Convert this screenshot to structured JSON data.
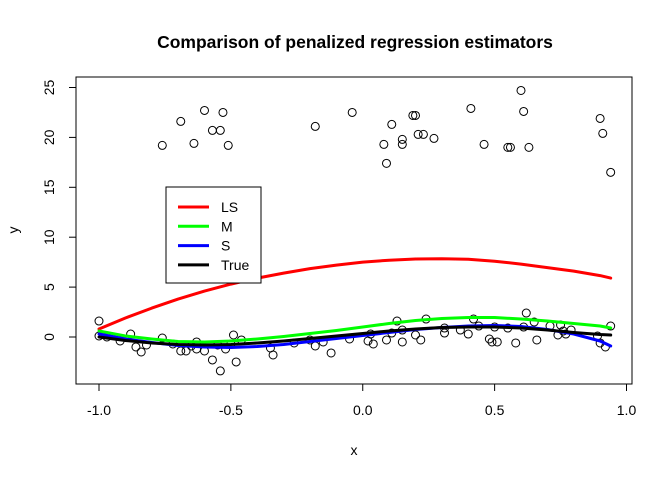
{
  "chart_data": {
    "type": "scatter",
    "title": "Comparison of penalized regression estimators",
    "xlabel": "x",
    "ylabel": "y",
    "xlim": [
      -1.0,
      0.95
    ],
    "ylim": [
      -4.6,
      26
    ],
    "x_ticks": [
      -1.0,
      -0.5,
      0.0,
      0.5,
      1.0
    ],
    "x_tick_labels": [
      "-1.0",
      "-0.5",
      "0.0",
      "0.5",
      "1.0"
    ],
    "y_ticks": [
      0,
      5,
      10,
      15,
      20,
      25
    ],
    "y_tick_labels": [
      "0",
      "5",
      "10",
      "15",
      "20",
      "25"
    ],
    "grid": false,
    "legend_position": "left",
    "points": [
      {
        "x": -0.76,
        "y": 19.2
      },
      {
        "x": -0.69,
        "y": 21.6
      },
      {
        "x": -0.64,
        "y": 19.4
      },
      {
        "x": -0.6,
        "y": 22.7
      },
      {
        "x": -0.57,
        "y": 20.7
      },
      {
        "x": -0.54,
        "y": 20.7
      },
      {
        "x": -0.53,
        "y": 22.5
      },
      {
        "x": -0.51,
        "y": 19.2
      },
      {
        "x": -0.18,
        "y": 21.1
      },
      {
        "x": -0.04,
        "y": 22.5
      },
      {
        "x": 0.08,
        "y": 19.3
      },
      {
        "x": 0.09,
        "y": 17.4
      },
      {
        "x": 0.11,
        "y": 21.3
      },
      {
        "x": 0.15,
        "y": 19.8
      },
      {
        "x": 0.15,
        "y": 19.3
      },
      {
        "x": 0.19,
        "y": 22.2
      },
      {
        "x": 0.2,
        "y": 22.2
      },
      {
        "x": 0.21,
        "y": 20.3
      },
      {
        "x": 0.23,
        "y": 20.3
      },
      {
        "x": 0.27,
        "y": 19.9
      },
      {
        "x": 0.41,
        "y": 22.9
      },
      {
        "x": 0.46,
        "y": 19.3
      },
      {
        "x": 0.55,
        "y": 19.0
      },
      {
        "x": 0.56,
        "y": 19.0
      },
      {
        "x": 0.6,
        "y": 24.7
      },
      {
        "x": 0.61,
        "y": 22.6
      },
      {
        "x": 0.63,
        "y": 19.0
      },
      {
        "x": 0.9,
        "y": 21.9
      },
      {
        "x": 0.91,
        "y": 20.4
      },
      {
        "x": 0.94,
        "y": 16.5
      },
      {
        "x": -1.0,
        "y": 1.6
      },
      {
        "x": -1.0,
        "y": 0.1
      },
      {
        "x": -0.97,
        "y": 0.0
      },
      {
        "x": -0.92,
        "y": -0.4
      },
      {
        "x": -0.88,
        "y": 0.3
      },
      {
        "x": -0.86,
        "y": -1.0
      },
      {
        "x": -0.84,
        "y": -1.5
      },
      {
        "x": -0.82,
        "y": -0.8
      },
      {
        "x": -0.76,
        "y": -0.1
      },
      {
        "x": -0.72,
        "y": -0.7
      },
      {
        "x": -0.69,
        "y": -1.4
      },
      {
        "x": -0.67,
        "y": -1.4
      },
      {
        "x": -0.65,
        "y": -0.9
      },
      {
        "x": -0.63,
        "y": -1.2
      },
      {
        "x": -0.63,
        "y": -0.5
      },
      {
        "x": -0.6,
        "y": -1.4
      },
      {
        "x": -0.57,
        "y": -2.3
      },
      {
        "x": -0.55,
        "y": -0.8
      },
      {
        "x": -0.54,
        "y": -3.4
      },
      {
        "x": -0.52,
        "y": -1.2
      },
      {
        "x": -0.5,
        "y": -0.7
      },
      {
        "x": -0.49,
        "y": 0.2
      },
      {
        "x": -0.48,
        "y": -2.5
      },
      {
        "x": -0.46,
        "y": -0.3
      },
      {
        "x": -0.35,
        "y": -1.1
      },
      {
        "x": -0.34,
        "y": -1.8
      },
      {
        "x": -0.26,
        "y": -0.6
      },
      {
        "x": -0.2,
        "y": -0.3
      },
      {
        "x": -0.18,
        "y": -0.9
      },
      {
        "x": -0.15,
        "y": -0.5
      },
      {
        "x": -0.12,
        "y": -1.6
      },
      {
        "x": -0.05,
        "y": -0.2
      },
      {
        "x": 0.02,
        "y": -0.4
      },
      {
        "x": 0.03,
        "y": 0.3
      },
      {
        "x": 0.04,
        "y": -0.7
      },
      {
        "x": 0.09,
        "y": -0.3
      },
      {
        "x": 0.11,
        "y": 0.4
      },
      {
        "x": 0.13,
        "y": 1.6
      },
      {
        "x": 0.15,
        "y": -0.5
      },
      {
        "x": 0.15,
        "y": 0.7
      },
      {
        "x": 0.2,
        "y": 0.2
      },
      {
        "x": 0.22,
        "y": -0.3
      },
      {
        "x": 0.24,
        "y": 1.8
      },
      {
        "x": 0.31,
        "y": 0.9
      },
      {
        "x": 0.31,
        "y": 0.4
      },
      {
        "x": 0.37,
        "y": 0.7
      },
      {
        "x": 0.4,
        "y": 0.3
      },
      {
        "x": 0.42,
        "y": 1.8
      },
      {
        "x": 0.44,
        "y": 1.1
      },
      {
        "x": 0.48,
        "y": -0.2
      },
      {
        "x": 0.49,
        "y": -0.5
      },
      {
        "x": 0.5,
        "y": 1.0
      },
      {
        "x": 0.51,
        "y": -0.5
      },
      {
        "x": 0.55,
        "y": 0.9
      },
      {
        "x": 0.58,
        "y": -0.6
      },
      {
        "x": 0.61,
        "y": 1.0
      },
      {
        "x": 0.62,
        "y": 2.4
      },
      {
        "x": 0.65,
        "y": 1.5
      },
      {
        "x": 0.66,
        "y": -0.3
      },
      {
        "x": 0.71,
        "y": 1.1
      },
      {
        "x": 0.74,
        "y": 0.2
      },
      {
        "x": 0.75,
        "y": 1.2
      },
      {
        "x": 0.76,
        "y": 0.6
      },
      {
        "x": 0.77,
        "y": 0.3
      },
      {
        "x": 0.79,
        "y": 0.7
      },
      {
        "x": 0.89,
        "y": 0.1
      },
      {
        "x": 0.9,
        "y": -0.6
      },
      {
        "x": 0.92,
        "y": -1.0
      },
      {
        "x": 0.94,
        "y": 1.1
      }
    ],
    "series": [
      {
        "name": "LS",
        "color": "#ff0000",
        "x": [
          -1.0,
          -0.9,
          -0.8,
          -0.7,
          -0.6,
          -0.5,
          -0.4,
          -0.3,
          -0.2,
          -0.1,
          0.0,
          0.1,
          0.2,
          0.3,
          0.4,
          0.5,
          0.6,
          0.7,
          0.8,
          0.9,
          0.94
        ],
        "y": [
          0.8,
          1.9,
          2.9,
          3.8,
          4.6,
          5.3,
          5.9,
          6.4,
          6.85,
          7.2,
          7.5,
          7.7,
          7.82,
          7.85,
          7.8,
          7.6,
          7.3,
          6.95,
          6.6,
          6.15,
          5.9
        ]
      },
      {
        "name": "M",
        "color": "#00ff00",
        "x": [
          -1.0,
          -0.9,
          -0.8,
          -0.7,
          -0.6,
          -0.5,
          -0.4,
          -0.3,
          -0.2,
          -0.1,
          0.0,
          0.1,
          0.2,
          0.3,
          0.4,
          0.5,
          0.6,
          0.7,
          0.8,
          0.9,
          0.94
        ],
        "y": [
          0.6,
          0.1,
          -0.2,
          -0.45,
          -0.5,
          -0.4,
          -0.2,
          0.05,
          0.35,
          0.65,
          1.0,
          1.35,
          1.65,
          1.85,
          1.95,
          1.95,
          1.8,
          1.6,
          1.35,
          1.1,
          0.9
        ]
      },
      {
        "name": "S",
        "color": "#0000ff",
        "x": [
          -1.0,
          -0.9,
          -0.8,
          -0.7,
          -0.6,
          -0.5,
          -0.4,
          -0.3,
          -0.2,
          -0.1,
          0.0,
          0.1,
          0.2,
          0.3,
          0.4,
          0.5,
          0.6,
          0.7,
          0.8,
          0.9,
          0.94
        ],
        "y": [
          0.3,
          -0.2,
          -0.55,
          -0.85,
          -1.0,
          -1.05,
          -0.95,
          -0.75,
          -0.45,
          -0.15,
          0.15,
          0.45,
          0.75,
          0.95,
          1.1,
          1.15,
          1.05,
          0.75,
          0.3,
          -0.4,
          -0.9
        ]
      },
      {
        "name": "True",
        "color": "#000000",
        "x": [
          -1.0,
          -0.9,
          -0.8,
          -0.7,
          -0.6,
          -0.5,
          -0.4,
          -0.3,
          -0.2,
          -0.1,
          0.0,
          0.1,
          0.2,
          0.3,
          0.4,
          0.5,
          0.6,
          0.7,
          0.8,
          0.9,
          0.94
        ],
        "y": [
          0.0,
          -0.35,
          -0.6,
          -0.75,
          -0.8,
          -0.75,
          -0.6,
          -0.4,
          -0.15,
          0.1,
          0.35,
          0.6,
          0.8,
          0.95,
          1.0,
          1.0,
          0.9,
          0.7,
          0.45,
          0.25,
          0.2
        ]
      }
    ]
  }
}
